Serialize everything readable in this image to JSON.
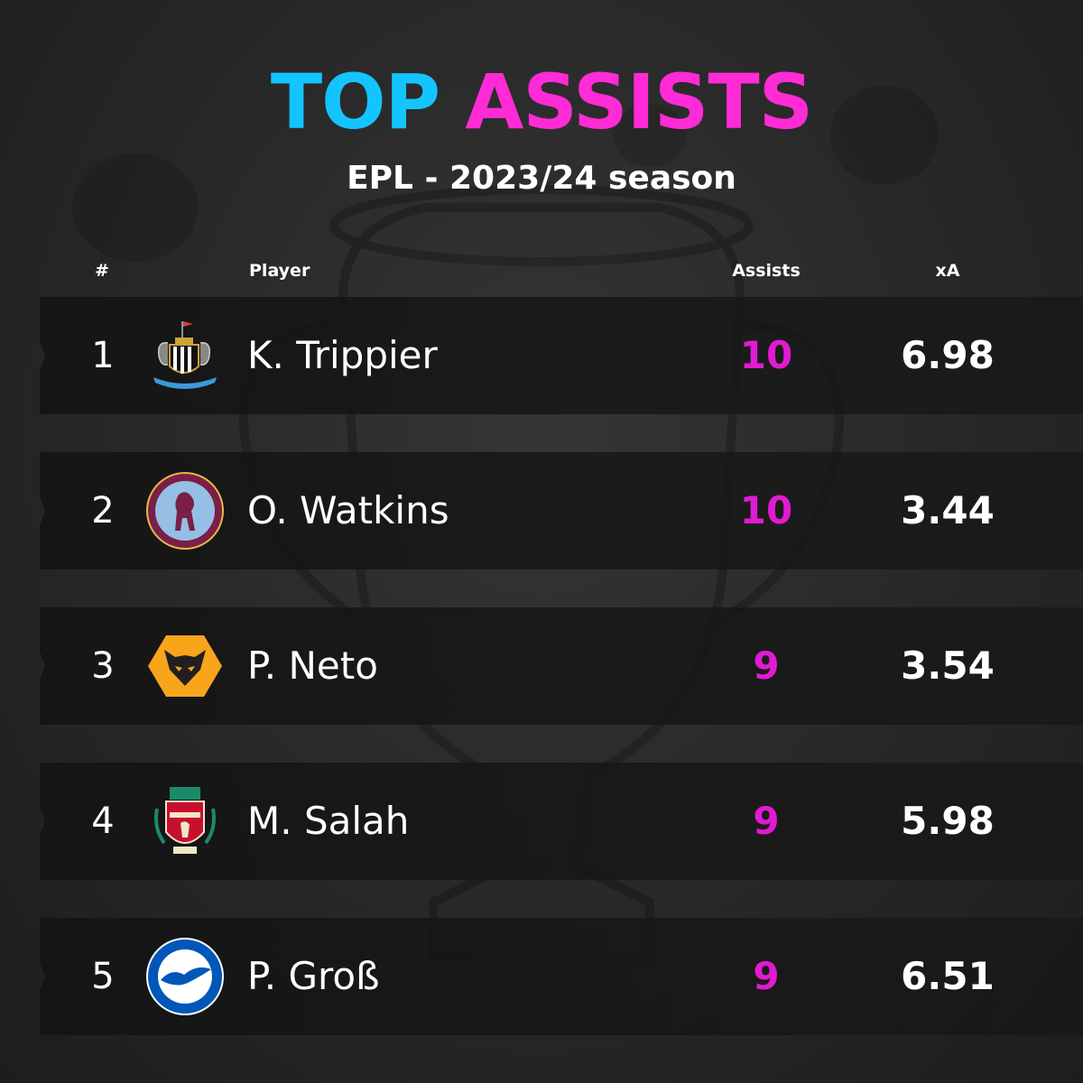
{
  "title": {
    "word1": "TOP",
    "word2": "ASSISTS"
  },
  "subtitle": "EPL - 2023/24 season",
  "columns": {
    "rank": "#",
    "player": "Player",
    "assists": "Assists",
    "xa": "xA"
  },
  "rows": [
    {
      "rank": "1",
      "player": "K. Trippier",
      "assists": "10",
      "xa": "6.98",
      "crest": "newcastle-crest-icon"
    },
    {
      "rank": "2",
      "player": "O. Watkins",
      "assists": "10",
      "xa": "3.44",
      "crest": "aston-villa-crest-icon"
    },
    {
      "rank": "3",
      "player": "P. Neto",
      "assists": "9",
      "xa": "3.54",
      "crest": "wolves-crest-icon"
    },
    {
      "rank": "4",
      "player": "M. Salah",
      "assists": "9",
      "xa": "5.98",
      "crest": "liverpool-crest-icon"
    },
    {
      "rank": "5",
      "player": "P. Groß",
      "assists": "9",
      "xa": "6.51",
      "crest": "brighton-crest-icon"
    }
  ],
  "colors": {
    "title_word1": "#14c4ff",
    "title_word2": "#ff2bd6",
    "assists": "#e21ad3",
    "background": "#2a2a2a"
  }
}
